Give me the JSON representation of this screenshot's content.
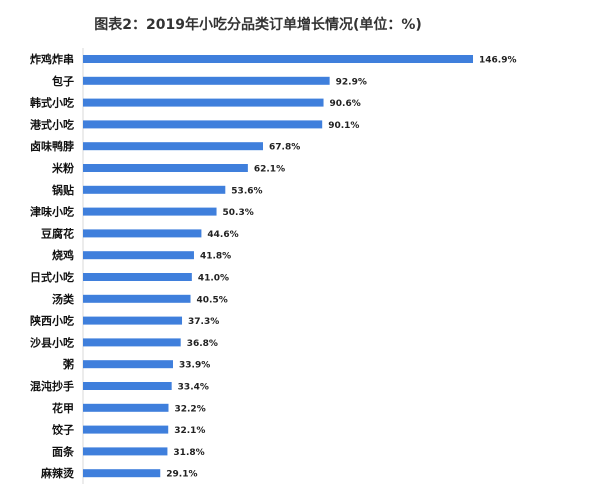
{
  "chart_data": {
    "type": "bar",
    "orientation": "horizontal",
    "title": "图表2：2019年小吃分品类订单增长情况(单位：%)",
    "xlabel": "",
    "ylabel": "",
    "categories": [
      "炸鸡炸串",
      "包子",
      "韩式小吃",
      "港式小吃",
      "卤味鸭脖",
      "米粉",
      "锅贴",
      "津味小吃",
      "豆腐花",
      "烧鸡",
      "日式小吃",
      "汤类",
      "陕西小吃",
      "沙县小吃",
      "粥",
      "混沌抄手",
      "花甲",
      "饺子",
      "面条",
      "麻辣烫"
    ],
    "values": [
      146.9,
      92.9,
      90.6,
      90.1,
      67.8,
      62.1,
      53.6,
      50.3,
      44.6,
      41.8,
      41.0,
      40.5,
      37.3,
      36.8,
      33.9,
      33.4,
      32.2,
      32.1,
      31.8,
      29.1
    ],
    "value_labels": [
      "146.9%",
      "92.9%",
      "90.6%",
      "90.1%",
      "67.8%",
      "62.1%",
      "53.6%",
      "50.3%",
      "44.6%",
      "41.8%",
      "41.0%",
      "40.5%",
      "37.3%",
      "36.8%",
      "33.9%",
      "33.4%",
      "32.2%",
      "32.1%",
      "31.8%",
      "29.1%"
    ],
    "xlim": [
      0,
      146.9
    ],
    "grid": false,
    "legend": "none",
    "bar_color": "#3f7fdc"
  }
}
